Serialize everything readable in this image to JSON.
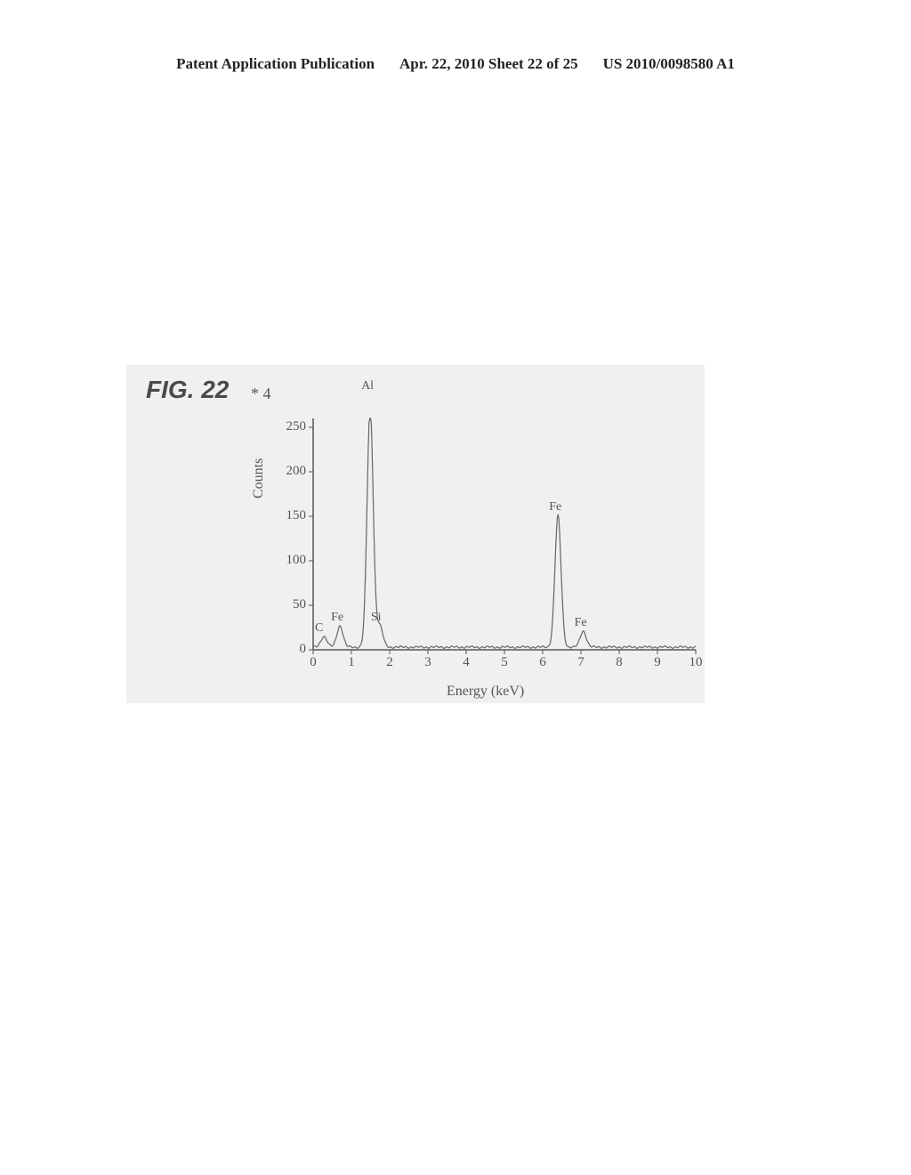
{
  "header": {
    "left": "Patent Application Publication",
    "center": "Apr. 22, 2010  Sheet 22 of 25",
    "right": "US 2010/0098580 A1"
  },
  "figure": {
    "label": "FIG. 22",
    "annotation": "* 4",
    "ylabel": "Counts",
    "xlabel": "Energy (keV)",
    "ylim": [
      0,
      260
    ],
    "xlim": [
      0,
      10
    ],
    "ytick_step": 50,
    "xtick_step": 1,
    "background_color": "#f0f0f0",
    "spectrum_color": "#666666",
    "axis_color": "#555555",
    "label_fontsize": 16,
    "tick_fontsize": 15,
    "peak_fontsize": 14,
    "peaks": [
      {
        "label": "C",
        "energy": 0.28,
        "counts": 12,
        "label_y_offset": 8
      },
      {
        "label": "Fe",
        "energy": 0.7,
        "counts": 24,
        "label_y_offset": 8
      },
      {
        "label": "Al",
        "energy": 1.49,
        "counts": 270,
        "label_y_offset": 32
      },
      {
        "label": "Si",
        "energy": 1.74,
        "counts": 24,
        "label_y_offset": 8
      },
      {
        "label": "Fe",
        "energy": 6.4,
        "counts": 148,
        "label_y_offset": 8
      },
      {
        "label": "Fe",
        "energy": 7.06,
        "counts": 18,
        "label_y_offset": 8
      }
    ],
    "baseline_noise": 3
  }
}
